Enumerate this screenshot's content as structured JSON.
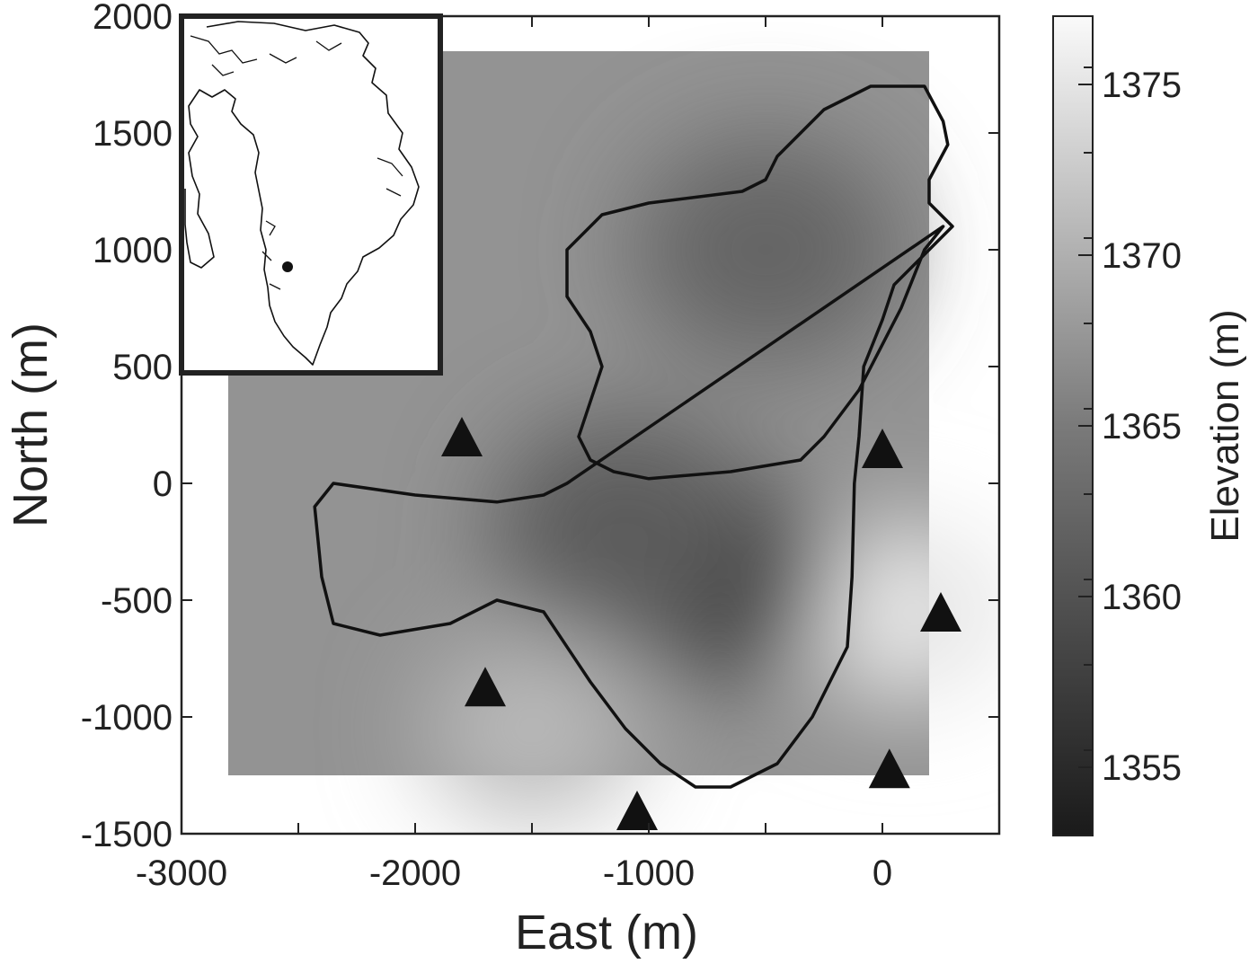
{
  "chart_data": {
    "type": "heatmap",
    "title": "",
    "xlabel": "East (m)",
    "ylabel": "North (m)",
    "xlim": [
      -3000,
      500
    ],
    "ylim": [
      -1500,
      2000
    ],
    "xticks": [
      -3000,
      -2000,
      -1000,
      0
    ],
    "yticks": [
      -1500,
      -1000,
      -500,
      0,
      500,
      1000,
      1500,
      2000
    ],
    "grid": false,
    "colorbar": {
      "label": "Elevation (m)",
      "range": [
        1353,
        1377
      ],
      "ticks": [
        1355,
        1360,
        1365,
        1370,
        1375
      ],
      "colormap": "grayscale"
    },
    "data_extent": {
      "x": [
        -2800,
        200
      ],
      "y": [
        -1250,
        1850
      ]
    },
    "elevation_field": {
      "background_elevation": 1366,
      "lows": [
        {
          "x": -700,
          "y": -400,
          "elevation": 1356
        },
        {
          "x": -1100,
          "y": -200,
          "elevation": 1360
        },
        {
          "x": -500,
          "y": 1000,
          "elevation": 1361
        }
      ],
      "highs": [
        {
          "x": 100,
          "y": -550,
          "elevation": 1375
        },
        {
          "x": -1500,
          "y": -1050,
          "elevation": 1370
        }
      ]
    },
    "outline": {
      "label": "",
      "x": [
        -1350,
        -1450,
        -1650,
        -2000,
        -2350,
        -2430,
        -2400,
        -2350,
        -2150,
        -1850,
        -1650,
        -1450,
        -1250,
        -1100,
        -950,
        -800,
        -650,
        -450,
        -300,
        -150,
        -130,
        -120,
        -100,
        -80,
        0,
        50,
        300,
        200,
        200,
        280,
        260,
        180,
        -50,
        -250,
        -350,
        -400,
        -450,
        -500,
        -600,
        -1000,
        -1200,
        -1350,
        -1350,
        -1250,
        -1200,
        -1250,
        -1300,
        -1250,
        -1150,
        -1000,
        -650,
        -350,
        -250,
        -100,
        80,
        180,
        260
      ],
      "y": [
        0,
        -50,
        -80,
        -50,
        0,
        -100,
        -400,
        -600,
        -650,
        -600,
        -500,
        -550,
        -850,
        -1050,
        -1200,
        -1300,
        -1300,
        -1200,
        -1000,
        -700,
        -400,
        0,
        200,
        500,
        700,
        850,
        1100,
        1200,
        1300,
        1450,
        1550,
        1700,
        1700,
        1600,
        1500,
        1450,
        1400,
        1300,
        1250,
        1200,
        1150,
        1000,
        800,
        650,
        500,
        350,
        200,
        100,
        50,
        20,
        50,
        100,
        200,
        400,
        750,
        1000,
        1100
      ],
      "color": "#111111"
    },
    "stations": {
      "marker": "triangle",
      "color": "#111111",
      "points": [
        {
          "x": -1800,
          "y": 200
        },
        {
          "x": -1700,
          "y": -870
        },
        {
          "x": -1050,
          "y": -1400
        },
        {
          "x": 0,
          "y": 150
        },
        {
          "x": 250,
          "y": -550
        },
        {
          "x": 30,
          "y": -1220
        }
      ]
    },
    "inset": {
      "description_visible": "Greenland outline map",
      "location_marker": "filled circle"
    }
  }
}
